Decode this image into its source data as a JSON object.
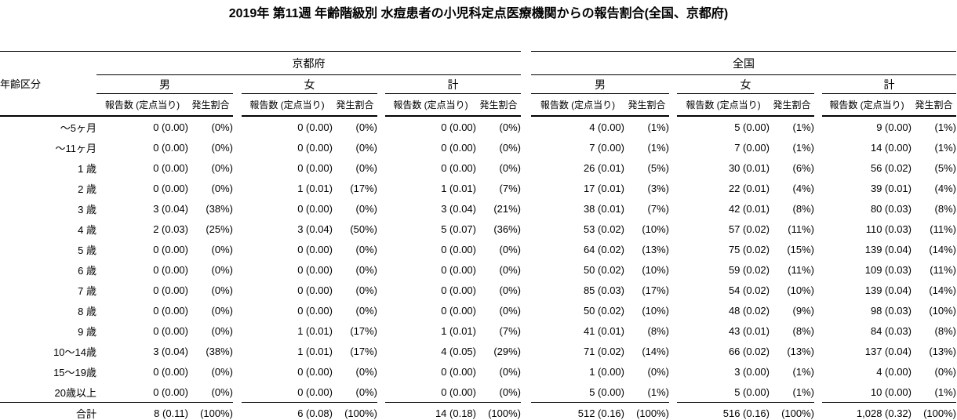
{
  "title": "2019年 第11週 年齢階級別 水痘患者の小児科定点医療機関からの報告割合(全国、京都府)",
  "table": {
    "age_header": "年齢区分",
    "regions": [
      "京都府",
      "全国"
    ],
    "sexes": [
      "男",
      "女",
      "計"
    ],
    "col_headers": {
      "count": "報告数 (定点当り)",
      "ratio": "発生割合"
    },
    "rows": [
      {
        "age": "～5ヶ月",
        "total": false,
        "cells": [
          "0 (0.00)",
          "(0%)",
          "0 (0.00)",
          "(0%)",
          "0 (0.00)",
          "(0%)",
          "4 (0.00)",
          "(1%)",
          "5 (0.00)",
          "(1%)",
          "9 (0.00)",
          "(1%)"
        ]
      },
      {
        "age": "～11ヶ月",
        "total": false,
        "cells": [
          "0 (0.00)",
          "(0%)",
          "0 (0.00)",
          "(0%)",
          "0 (0.00)",
          "(0%)",
          "7 (0.00)",
          "(1%)",
          "7 (0.00)",
          "(1%)",
          "14 (0.00)",
          "(1%)"
        ]
      },
      {
        "age": "1 歳",
        "total": false,
        "cells": [
          "0 (0.00)",
          "(0%)",
          "0 (0.00)",
          "(0%)",
          "0 (0.00)",
          "(0%)",
          "26 (0.01)",
          "(5%)",
          "30 (0.01)",
          "(6%)",
          "56 (0.02)",
          "(5%)"
        ]
      },
      {
        "age": "2 歳",
        "total": false,
        "cells": [
          "0 (0.00)",
          "(0%)",
          "1 (0.01)",
          "(17%)",
          "1 (0.01)",
          "(7%)",
          "17 (0.01)",
          "(3%)",
          "22 (0.01)",
          "(4%)",
          "39 (0.01)",
          "(4%)"
        ]
      },
      {
        "age": "3 歳",
        "total": false,
        "cells": [
          "3 (0.04)",
          "(38%)",
          "0 (0.00)",
          "(0%)",
          "3 (0.04)",
          "(21%)",
          "38 (0.01)",
          "(7%)",
          "42 (0.01)",
          "(8%)",
          "80 (0.03)",
          "(8%)"
        ]
      },
      {
        "age": "4 歳",
        "total": false,
        "cells": [
          "2 (0.03)",
          "(25%)",
          "3 (0.04)",
          "(50%)",
          "5 (0.07)",
          "(36%)",
          "53 (0.02)",
          "(10%)",
          "57 (0.02)",
          "(11%)",
          "110 (0.03)",
          "(11%)"
        ]
      },
      {
        "age": "5 歳",
        "total": false,
        "cells": [
          "0 (0.00)",
          "(0%)",
          "0 (0.00)",
          "(0%)",
          "0 (0.00)",
          "(0%)",
          "64 (0.02)",
          "(13%)",
          "75 (0.02)",
          "(15%)",
          "139 (0.04)",
          "(14%)"
        ]
      },
      {
        "age": "6 歳",
        "total": false,
        "cells": [
          "0 (0.00)",
          "(0%)",
          "0 (0.00)",
          "(0%)",
          "0 (0.00)",
          "(0%)",
          "50 (0.02)",
          "(10%)",
          "59 (0.02)",
          "(11%)",
          "109 (0.03)",
          "(11%)"
        ]
      },
      {
        "age": "7 歳",
        "total": false,
        "cells": [
          "0 (0.00)",
          "(0%)",
          "0 (0.00)",
          "(0%)",
          "0 (0.00)",
          "(0%)",
          "85 (0.03)",
          "(17%)",
          "54 (0.02)",
          "(10%)",
          "139 (0.04)",
          "(14%)"
        ]
      },
      {
        "age": "8 歳",
        "total": false,
        "cells": [
          "0 (0.00)",
          "(0%)",
          "0 (0.00)",
          "(0%)",
          "0 (0.00)",
          "(0%)",
          "50 (0.02)",
          "(10%)",
          "48 (0.02)",
          "(9%)",
          "98 (0.03)",
          "(10%)"
        ]
      },
      {
        "age": "9 歳",
        "total": false,
        "cells": [
          "0 (0.00)",
          "(0%)",
          "1 (0.01)",
          "(17%)",
          "1 (0.01)",
          "(7%)",
          "41 (0.01)",
          "(8%)",
          "43 (0.01)",
          "(8%)",
          "84 (0.03)",
          "(8%)"
        ]
      },
      {
        "age": "10～14歳",
        "total": false,
        "cells": [
          "3 (0.04)",
          "(38%)",
          "1 (0.01)",
          "(17%)",
          "4 (0.05)",
          "(29%)",
          "71 (0.02)",
          "(14%)",
          "66 (0.02)",
          "(13%)",
          "137 (0.04)",
          "(13%)"
        ]
      },
      {
        "age": "15～19歳",
        "total": false,
        "cells": [
          "0 (0.00)",
          "(0%)",
          "0 (0.00)",
          "(0%)",
          "0 (0.00)",
          "(0%)",
          "1 (0.00)",
          "(0%)",
          "3 (0.00)",
          "(1%)",
          "4 (0.00)",
          "(0%)"
        ]
      },
      {
        "age": "20歳以上",
        "total": false,
        "cells": [
          "0 (0.00)",
          "(0%)",
          "0 (0.00)",
          "(0%)",
          "0 (0.00)",
          "(0%)",
          "5 (0.00)",
          "(1%)",
          "5 (0.00)",
          "(1%)",
          "10 (0.00)",
          "(1%)"
        ]
      },
      {
        "age": "合計",
        "total": true,
        "cells": [
          "8 (0.11)",
          "(100%)",
          "6 (0.08)",
          "(100%)",
          "14 (0.18)",
          "(100%)",
          "512 (0.16)",
          "(100%)",
          "516 (0.16)",
          "(100%)",
          "1,028 (0.32)",
          "(100%)"
        ]
      }
    ]
  }
}
